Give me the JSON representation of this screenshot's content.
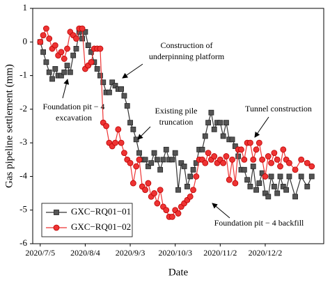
{
  "chart_data": {
    "type": "line",
    "xlabel": "Date",
    "ylabel": "Gas pipeline settlement (mm)",
    "x": [
      "2020/7/5",
      "2020/7/7",
      "2020/7/9",
      "2020/7/11",
      "2020/7/13",
      "2020/7/15",
      "2020/7/17",
      "2020/7/19",
      "2020/7/21",
      "2020/7/23",
      "2020/7/25",
      "2020/7/27",
      "2020/7/29",
      "2020/7/31",
      "2020/8/2",
      "2020/8/4",
      "2020/8/6",
      "2020/8/8",
      "2020/8/10",
      "2020/8/12",
      "2020/8/14",
      "2020/8/16",
      "2020/8/18",
      "2020/8/20",
      "2020/8/22",
      "2020/8/24",
      "2020/8/26",
      "2020/8/28",
      "2020/8/30",
      "2020/9/1",
      "2020/9/3",
      "2020/9/5",
      "2020/9/7",
      "2020/9/9",
      "2020/9/11",
      "2020/9/13",
      "2020/9/15",
      "2020/9/17",
      "2020/9/19",
      "2020/9/21",
      "2020/9/23",
      "2020/9/25",
      "2020/9/27",
      "2020/9/29",
      "2020/10/1",
      "2020/10/3",
      "2020/10/5",
      "2020/10/7",
      "2020/10/9",
      "2020/10/11",
      "2020/10/13",
      "2020/10/15",
      "2020/10/17",
      "2020/10/19",
      "2020/10/21",
      "2020/10/23",
      "2020/10/25",
      "2020/10/27",
      "2020/10/29",
      "2020/10/31",
      "2020/11/2",
      "2020/11/4",
      "2020/11/6",
      "2020/11/8",
      "2020/11/10",
      "2020/11/12",
      "2020/11/14",
      "2020/11/16",
      "2020/11/18",
      "2020/11/20",
      "2020/11/22",
      "2020/11/24",
      "2020/11/26",
      "2020/11/28",
      "2020/11/30",
      "2020/12/2",
      "2020/12/4",
      "2020/12/6",
      "2020/12/8",
      "2020/12/10",
      "2020/12/12",
      "2020/12/14",
      "2020/12/16",
      "2020/12/18",
      "2020/12/22",
      "2020/12/26",
      "2020/12/30",
      "2021/1/2"
    ],
    "series": [
      {
        "name": "GXC−RQ01−01",
        "color": "#333333",
        "marker": "square",
        "values": [
          0,
          -0.3,
          -0.6,
          -0.9,
          -1.1,
          -0.8,
          -1.0,
          -1.0,
          -0.9,
          -0.7,
          -0.9,
          -0.4,
          -0.2,
          0.3,
          0.1,
          0.3,
          -0.1,
          -0.3,
          -0.6,
          -0.8,
          -1.0,
          -1.2,
          -1.5,
          -1.5,
          -1.2,
          -1.3,
          -1.4,
          -1.4,
          -1.6,
          -1.9,
          -2.4,
          -2.6,
          -2.9,
          -3.3,
          -3.5,
          -3.5,
          -3.7,
          -3.6,
          -3.3,
          -3.5,
          -3.8,
          -3.5,
          -3.2,
          -3.5,
          -3.5,
          -3.3,
          -4.4,
          -3.6,
          -3.7,
          -4.3,
          -4.0,
          -3.8,
          -3.6,
          -3.2,
          -3.2,
          -2.8,
          -2.4,
          -2.1,
          -2.6,
          -2.4,
          -2.4,
          -2.8,
          -2.4,
          -2.9,
          -2.9,
          -3.1,
          -3.4,
          -3.8,
          -3.8,
          -4.1,
          -4.3,
          -3.7,
          -4.4,
          -4.2,
          -3.9,
          -4.5,
          -4.6,
          -4.0,
          -4.3,
          -4.5,
          -4.0,
          -4.3,
          -4.4,
          -4.0,
          -4.6,
          -4.0,
          -4.3,
          -4.0
        ]
      },
      {
        "name": "GXC−RQ01−02",
        "color": "#ee3333",
        "marker": "circle",
        "values": [
          0,
          0.2,
          0.4,
          0.1,
          -0.2,
          -0.1,
          -0.4,
          -0.3,
          -0.5,
          -0.2,
          0.3,
          0.2,
          0.1,
          0.4,
          0.4,
          -0.8,
          -0.7,
          -0.6,
          -0.2,
          -0.2,
          -0.2,
          -2.4,
          -2.5,
          -3.0,
          -3.1,
          -3.0,
          -2.6,
          -3.0,
          -3.3,
          -3.5,
          -3.6,
          -4.2,
          -3.7,
          -3.5,
          -4.3,
          -4.4,
          -4.2,
          -4.6,
          -4.5,
          -4.8,
          -4.4,
          -4.9,
          -5.0,
          -5.2,
          -5.2,
          -5.0,
          -5.1,
          -4.9,
          -4.8,
          -4.7,
          -4.6,
          -4.4,
          -4.0,
          -3.5,
          -3.5,
          -3.6,
          -3.3,
          -3.5,
          -3.4,
          -3.6,
          -3.5,
          -3.6,
          -3.4,
          -4.1,
          -3.5,
          -4.2,
          -3.2,
          -3.2,
          -3.5,
          -3.0,
          -3.0,
          -3.5,
          -3.2,
          -3.0,
          -3.5,
          -4.0,
          -3.4,
          -3.6,
          -3.3,
          -3.5,
          -3.7,
          -3.2,
          -3.5,
          -3.6,
          -3.8,
          -3.5,
          -3.6,
          -3.7
        ]
      }
    ],
    "xlim": [
      "2020/6/30",
      "2021/1/10"
    ],
    "xticks": [
      "2020/7/5",
      "2020/8/4",
      "2020/9/3",
      "2020/10/3",
      "2020/11/2",
      "2020/12/2"
    ],
    "ylim": [
      -6,
      1
    ],
    "yticks": [
      -6,
      -5,
      -4,
      -3,
      -2,
      -1,
      0,
      1
    ],
    "legend": "lower left",
    "annotations": [
      {
        "text": [
          "Construction of",
          "underpinning platform"
        ]
      },
      {
        "text": [
          "Foundation pit − 4",
          "excavation"
        ]
      },
      {
        "text": [
          "Existing pile",
          "truncation"
        ]
      },
      {
        "text": [
          "Tunnel construction"
        ]
      },
      {
        "text": [
          "Foundation pit − 4 backfill"
        ]
      }
    ]
  }
}
